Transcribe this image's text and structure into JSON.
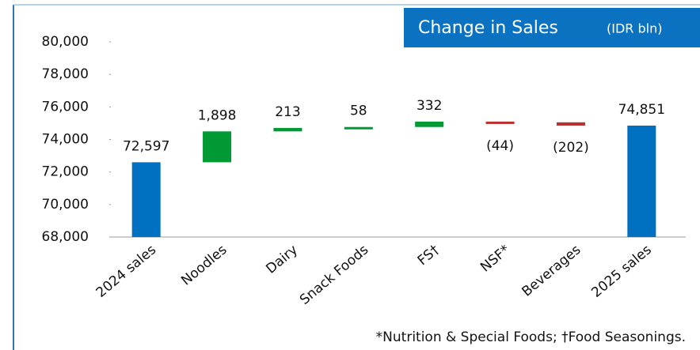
{
  "chart_data": {
    "type": "waterfall",
    "title": "Change in Sales",
    "subtitle": "(IDR bln)",
    "footnote": "*Nutrition & Special Foods; †Food Seasonings.",
    "categories": [
      "2024 sales",
      "Noodles",
      "Dairy",
      "Snack Foods",
      "FS†",
      "NSF*",
      "Beverages",
      "2025 sales"
    ],
    "values": [
      72597,
      1898,
      213,
      58,
      332,
      -44,
      -202,
      74851
    ],
    "value_labels": [
      "72,597",
      "1,898",
      "213",
      "58",
      "332",
      "(44)",
      "(202)",
      "74,851"
    ],
    "colors": {
      "total": "#0070c0",
      "increase": "#009933",
      "decrease": "#b8312f"
    },
    "ylim": [
      68000,
      80000
    ],
    "yticks": [
      {
        "value": 68000,
        "label": "68,000"
      },
      {
        "value": 70000,
        "label": "70,000"
      },
      {
        "value": 72000,
        "label": "72,000"
      },
      {
        "value": 74000,
        "label": "74,000"
      },
      {
        "value": 76000,
        "label": "76,000"
      },
      {
        "value": 78000,
        "label": "78,000"
      },
      {
        "value": 80000,
        "label": "80,000"
      }
    ],
    "grid": false
  }
}
